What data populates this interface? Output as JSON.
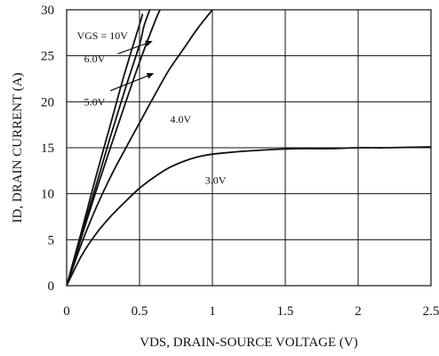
{
  "chart_data": {
    "type": "line",
    "title": "",
    "xlabel": "VDS, DRAIN-SOURCE VOLTAGE (V)",
    "ylabel": "ID, DRAIN CURRENT (A)",
    "xlim": [
      0,
      2.5
    ],
    "ylim": [
      0,
      30
    ],
    "x_ticks": [
      "0",
      "0.5",
      "1",
      "1.5",
      "2",
      "2.5"
    ],
    "y_ticks": [
      "0",
      "5",
      "10",
      "15",
      "20",
      "25",
      "30"
    ],
    "grid": true,
    "series": [
      {
        "name": "VGS = 10V",
        "x": [
          0,
          0.1,
          0.2,
          0.3,
          0.4,
          0.5,
          0.52
        ],
        "y": [
          0,
          5.8,
          11.8,
          17.5,
          23.2,
          28.4,
          29.5
        ]
      },
      {
        "name": "6.0V",
        "x": [
          0,
          0.1,
          0.2,
          0.3,
          0.4,
          0.5,
          0.53,
          0.57
        ],
        "y": [
          0,
          5.5,
          10.8,
          16.2,
          21.3,
          26.2,
          28.2,
          30
        ]
      },
      {
        "name": "5.0V",
        "x": [
          0,
          0.1,
          0.2,
          0.3,
          0.4,
          0.5,
          0.6,
          0.64
        ],
        "y": [
          0,
          5.2,
          10.2,
          15.0,
          19.7,
          24.3,
          28.5,
          30
        ]
      },
      {
        "name": "4.0V",
        "x": [
          0,
          0.1,
          0.2,
          0.3,
          0.4,
          0.5,
          0.6,
          0.7,
          0.8,
          0.9,
          1.0
        ],
        "y": [
          0,
          4.5,
          8.4,
          11.8,
          14.8,
          17.7,
          20.6,
          23.4,
          25.7,
          28.0,
          30
        ]
      },
      {
        "name": "3.0V",
        "x": [
          0,
          0.1,
          0.2,
          0.3,
          0.4,
          0.5,
          0.6,
          0.7,
          0.8,
          0.9,
          1.0,
          1.2,
          1.4,
          1.6,
          1.8,
          2.0,
          2.2,
          2.5
        ],
        "y": [
          0,
          3.2,
          5.6,
          7.5,
          9.1,
          10.6,
          11.8,
          12.8,
          13.5,
          14.0,
          14.3,
          14.6,
          14.8,
          14.9,
          14.9,
          15.0,
          15.0,
          15.1
        ]
      }
    ],
    "annotations": [
      {
        "text": "VGS = 10V",
        "x": 0.07,
        "y": 26.8
      },
      {
        "text": "6.0V",
        "x": 0.12,
        "y": 24.3
      },
      {
        "text": "5.0V",
        "x": 0.12,
        "y": 19.6
      },
      {
        "text": "4.0V",
        "x": 0.71,
        "y": 17.7
      },
      {
        "text": "3.0V",
        "x": 0.95,
        "y": 11.1
      }
    ],
    "arrows": [
      {
        "from": [
          0.35,
          25.2
        ],
        "to": [
          0.59,
          26.6
        ]
      },
      {
        "from": [
          0.3,
          21.2
        ],
        "to": [
          0.6,
          23.1
        ]
      }
    ]
  }
}
